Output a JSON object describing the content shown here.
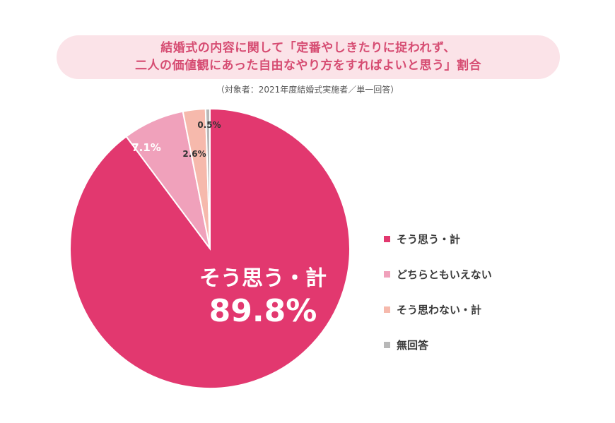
{
  "title": {
    "line1": "結婚式の内容に関して「定番やしきたりに捉われず、",
    "line2": "二人の価値観にあった自由なやり方をすればよいと思う」割合"
  },
  "subtitle": "（対象者：2021年度結婚式実施者／単一回答）",
  "chart_data": {
    "type": "pie",
    "title": "結婚式の内容に関して「定番やしきたりに捉われず、二人の価値観にあった自由なやり方をすればよいと思う」割合",
    "subtitle": "（対象者：2021年度結婚式実施者／単一回答）",
    "start": "12 o'clock, clockwise",
    "legend_position": "right",
    "slices": [
      {
        "name": "そう思う・計",
        "value": 89.8,
        "label": "89.8%",
        "color": "#e2386f"
      },
      {
        "name": "どちらともいえない",
        "value": 7.1,
        "label": "7.1%",
        "color": "#f0a1bb"
      },
      {
        "name": "そう思わない・計",
        "value": 2.6,
        "label": "2.6%",
        "color": "#f6b9ac"
      },
      {
        "name": "無回答",
        "value": 0.5,
        "label": "0.5%",
        "color": "#b8b8b8"
      }
    ],
    "big_label": {
      "name": "そう思う・計",
      "value": "89.8%"
    }
  }
}
